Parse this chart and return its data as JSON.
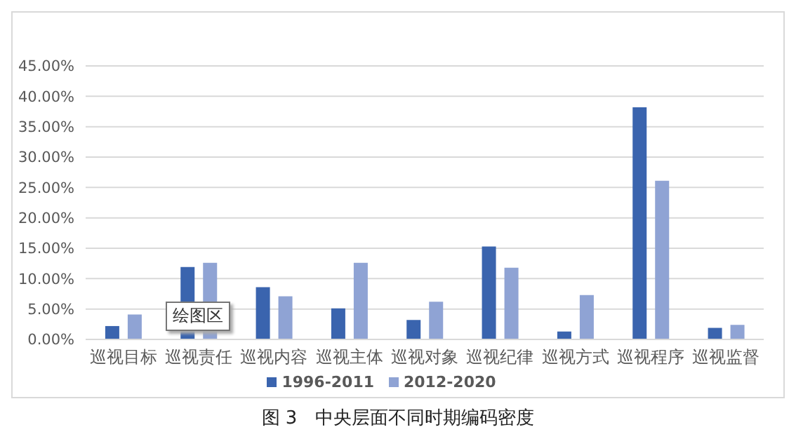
{
  "chart_data": {
    "type": "bar",
    "title": "图 3　中央层面不同时期编码密度",
    "categories": [
      "巡视目标",
      "巡视责任",
      "巡视内容",
      "巡视主体",
      "巡视对象",
      "巡视纪律",
      "巡视方式",
      "巡视程序",
      "巡视监督"
    ],
    "series": [
      {
        "name": "1996-2011",
        "color": "#3a64ae",
        "values": [
          2.2,
          11.9,
          8.6,
          5.1,
          3.2,
          15.3,
          1.3,
          38.2,
          1.9
        ]
      },
      {
        "name": "2012-2020",
        "color": "#8fa3d4",
        "values": [
          4.1,
          12.6,
          7.1,
          12.6,
          6.2,
          11.8,
          7.3,
          26.1,
          2.4
        ]
      }
    ],
    "ylim": [
      0,
      45
    ],
    "yticks": [
      {
        "value": 0,
        "label": "0.00%"
      },
      {
        "value": 5,
        "label": "5.00%"
      },
      {
        "value": 10,
        "label": "10.00%"
      },
      {
        "value": 15,
        "label": "15.00%"
      },
      {
        "value": 20,
        "label": "20.00%"
      },
      {
        "value": 25,
        "label": "25.00%"
      },
      {
        "value": 30,
        "label": "30.00%"
      },
      {
        "value": 35,
        "label": "35.00%"
      },
      {
        "value": 40,
        "label": "40.00%"
      },
      {
        "value": 45,
        "label": "45.00%"
      }
    ],
    "grid": "y",
    "legend": "bottom",
    "annotations": [
      "绘图区"
    ]
  }
}
